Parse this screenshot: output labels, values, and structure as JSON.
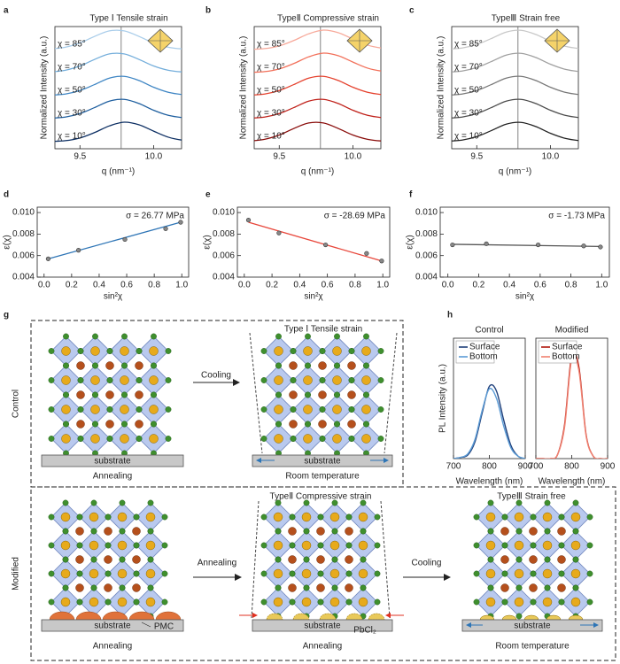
{
  "panel_labels": [
    "a",
    "b",
    "c",
    "d",
    "e",
    "f",
    "g",
    "h"
  ],
  "chart_data": [
    {
      "type": "waterfall",
      "title": "Type Ⅰ   Tensile strain",
      "x_label": "q (nm⁻¹)",
      "y_label": "Normalized Intensity (a.u.)",
      "x": [
        9.3,
        9.4,
        9.5,
        9.6,
        9.7,
        9.8,
        9.9,
        10,
        10.1,
        10.2,
        10.3
      ],
      "xlim": [
        9.33,
        10.19
      ],
      "xticks": [
        9.5,
        {
          "value": 10,
          "label": "10.0"
        }
      ],
      "ref_line": 9.78,
      "series": [
        {
          "name": "χ = 85°",
          "color": "#a9cdea",
          "values": [
            0.03,
            0.12,
            0.34,
            0.68,
            0.96,
            0.96,
            0.68,
            0.34,
            0.12,
            0.03,
            0.01
          ]
        },
        {
          "name": "χ = 70°",
          "color": "#74aedb",
          "values": [
            0.03,
            0.12,
            0.34,
            0.68,
            0.96,
            0.96,
            0.68,
            0.34,
            0.12,
            0.03,
            0.01
          ]
        },
        {
          "name": "χ = 50°",
          "color": "#3f86c4",
          "values": [
            0.02,
            0.08,
            0.26,
            0.57,
            0.9,
            0.99,
            0.78,
            0.43,
            0.17,
            0.05,
            0.01
          ]
        },
        {
          "name": "χ = 30°",
          "color": "#1f5f9f",
          "values": [
            0.02,
            0.08,
            0.26,
            0.57,
            0.9,
            0.99,
            0.78,
            0.43,
            0.17,
            0.05,
            0.01
          ]
        },
        {
          "name": "χ = 10°",
          "color": "#0d2f63",
          "values": [
            0.01,
            0.05,
            0.19,
            0.47,
            0.81,
            1.0,
            0.87,
            0.54,
            0.23,
            0.07,
            0.02
          ]
        }
      ]
    },
    {
      "type": "waterfall",
      "title": "TypeⅡ  Compressive strain",
      "x_label": "q (nm⁻¹)",
      "y_label": "Normalized Intensity (a.u.)",
      "x": [
        9.3,
        9.4,
        9.5,
        9.6,
        9.7,
        9.8,
        9.9,
        10,
        10.1,
        10.2,
        10.3
      ],
      "xlim": [
        9.33,
        10.19
      ],
      "xticks": [
        9.5,
        {
          "value": 10,
          "label": "10.0"
        }
      ],
      "ref_line": 9.78,
      "series": [
        {
          "name": "χ = 85°",
          "color": "#f7a99a",
          "values": [
            0.01,
            0.05,
            0.19,
            0.47,
            0.81,
            1.0,
            0.87,
            0.54,
            0.23,
            0.07,
            0.02
          ]
        },
        {
          "name": "χ = 70°",
          "color": "#f2705a",
          "values": [
            0.01,
            0.05,
            0.19,
            0.47,
            0.81,
            1.0,
            0.87,
            0.54,
            0.23,
            0.07,
            0.02
          ]
        },
        {
          "name": "χ = 50°",
          "color": "#e5412d",
          "values": [
            0.02,
            0.08,
            0.26,
            0.57,
            0.9,
            0.99,
            0.78,
            0.43,
            0.17,
            0.05,
            0.01
          ]
        },
        {
          "name": "χ = 30°",
          "color": "#c0211a",
          "values": [
            0.02,
            0.08,
            0.26,
            0.57,
            0.9,
            0.99,
            0.78,
            0.43,
            0.17,
            0.05,
            0.01
          ]
        },
        {
          "name": "χ = 10°",
          "color": "#8a0d0b",
          "values": [
            0.03,
            0.12,
            0.34,
            0.68,
            0.96,
            0.96,
            0.68,
            0.34,
            0.12,
            0.03,
            0.01
          ]
        }
      ]
    },
    {
      "type": "waterfall",
      "title": "TypeⅢ  Strain free",
      "x_label": "q (nm⁻¹)",
      "y_label": "Normalized Intensity (a.u.)",
      "x": [
        9.3,
        9.4,
        9.5,
        9.6,
        9.7,
        9.8,
        9.9,
        10,
        10.1,
        10.2,
        10.3
      ],
      "xlim": [
        9.33,
        10.19
      ],
      "xticks": [
        9.5,
        {
          "value": 10,
          "label": "10.0"
        }
      ],
      "ref_line": 9.78,
      "series": [
        {
          "name": "χ = 85°",
          "color": "#c8c8c8",
          "values": [
            0.02,
            0.08,
            0.26,
            0.57,
            0.9,
            0.99,
            0.78,
            0.43,
            0.17,
            0.05,
            0.01
          ]
        },
        {
          "name": "χ = 70°",
          "color": "#a0a0a0",
          "values": [
            0.02,
            0.08,
            0.26,
            0.57,
            0.9,
            0.99,
            0.78,
            0.43,
            0.17,
            0.05,
            0.01
          ]
        },
        {
          "name": "χ = 50°",
          "color": "#787878",
          "values": [
            0.02,
            0.08,
            0.26,
            0.57,
            0.9,
            0.99,
            0.78,
            0.43,
            0.17,
            0.05,
            0.01
          ]
        },
        {
          "name": "χ = 30°",
          "color": "#4c4c4c",
          "values": [
            0.02,
            0.08,
            0.26,
            0.57,
            0.9,
            0.99,
            0.78,
            0.43,
            0.17,
            0.05,
            0.01
          ]
        },
        {
          "name": "χ = 10°",
          "color": "#222222",
          "values": [
            0.02,
            0.08,
            0.26,
            0.57,
            0.9,
            0.99,
            0.78,
            0.43,
            0.17,
            0.05,
            0.01
          ]
        }
      ]
    },
    {
      "type": "scatter",
      "x_label": "sin²χ",
      "y_label": "ε(χ)",
      "annotation": "σ = 26.77 MPa",
      "color": "#2e75b6",
      "x": [
        0.03,
        0.25,
        0.587,
        0.883,
        0.992
      ],
      "values": [
        0.0057,
        0.0065,
        0.0075,
        0.0085,
        0.0091
      ],
      "fit": {
        "x": [
          0.03,
          0.992
        ],
        "values": [
          0.0057,
          0.0091
        ]
      },
      "xlim": [
        -0.05,
        1.05
      ],
      "ylim": [
        0.004,
        0.0105
      ],
      "xticks": [
        {
          "value": 0,
          "label": "0.0"
        },
        0.2,
        0.4,
        0.6,
        0.8,
        {
          "value": 1,
          "label": "1.0"
        }
      ],
      "yticks": [
        0.004,
        0.006,
        0.008,
        {
          "value": 0.01,
          "label": "0.010"
        }
      ]
    },
    {
      "type": "scatter",
      "x_label": "sin²χ",
      "y_label": "ε(χ)",
      "annotation": "σ = -28.69 MPa",
      "color": "#e8463a",
      "x": [
        0.03,
        0.25,
        0.587,
        0.883,
        0.992
      ],
      "values": [
        0.0093,
        0.0081,
        0.007,
        0.0062,
        0.0055
      ],
      "fit": {
        "x": [
          0.03,
          0.992
        ],
        "values": [
          0.0091,
          0.0055
        ]
      },
      "xlim": [
        -0.05,
        1.05
      ],
      "ylim": [
        0.004,
        0.0105
      ],
      "xticks": [
        {
          "value": 0,
          "label": "0.0"
        },
        0.2,
        0.4,
        0.6,
        0.8,
        {
          "value": 1,
          "label": "1.0"
        }
      ],
      "yticks": [
        0.004,
        0.006,
        0.008,
        {
          "value": 0.01,
          "label": "0.010"
        }
      ]
    },
    {
      "type": "scatter",
      "x_label": "sin²χ",
      "y_label": "ε(χ)",
      "annotation": "σ = -1.73 MPa",
      "color": "#555555",
      "x": [
        0.03,
        0.25,
        0.587,
        0.883,
        0.992
      ],
      "values": [
        0.007,
        0.0071,
        0.007,
        0.0069,
        0.0068
      ],
      "fit": {
        "x": [
          0.03,
          0.992
        ],
        "values": [
          0.00705,
          0.00685
        ]
      },
      "xlim": [
        -0.05,
        1.05
      ],
      "ylim": [
        0.004,
        0.0105
      ],
      "xticks": [
        {
          "value": 0,
          "label": "0.0"
        },
        0.2,
        0.4,
        0.6,
        0.8,
        {
          "value": 1,
          "label": "1.0"
        }
      ],
      "yticks": [
        0.004,
        0.006,
        0.008,
        {
          "value": 0.01,
          "label": "0.010"
        }
      ]
    },
    {
      "type": "line",
      "title": "Control",
      "x_label": "Wavelength (nm)",
      "y_label": "PL Intensity (a.u.)",
      "x": [
        700,
        720,
        740,
        760,
        780,
        800,
        820,
        840,
        860,
        880,
        900
      ],
      "xlim": [
        700,
        900
      ],
      "xticks": [
        700,
        800,
        900
      ],
      "ylim": [
        0,
        1
      ],
      "legend": "upper left",
      "series": [
        {
          "name": "Surface",
          "color": "#1f3f7a",
          "values": [
            0,
            0.01,
            0.03,
            0.14,
            0.38,
            0.6,
            0.56,
            0.32,
            0.11,
            0.02,
            0
          ]
        },
        {
          "name": "Bottom",
          "color": "#5b9bd5",
          "values": [
            0,
            0.01,
            0.04,
            0.16,
            0.4,
            0.58,
            0.5,
            0.27,
            0.09,
            0.02,
            0
          ]
        }
      ]
    },
    {
      "type": "line",
      "title": "Modified",
      "x_label": "Wavelength (nm)",
      "x": [
        700,
        720,
        740,
        760,
        780,
        800,
        820,
        840,
        860,
        880,
        900
      ],
      "xlim": [
        700,
        900
      ],
      "xticks": [
        700,
        800,
        900
      ],
      "ylim": [
        0,
        1
      ],
      "legend": "upper left",
      "series": [
        {
          "name": "Surface",
          "color": "#b0170c",
          "values": [
            0,
            0,
            0,
            0.03,
            0.28,
            0.86,
            0.76,
            0.2,
            0.02,
            0,
            0
          ]
        },
        {
          "name": "Bottom",
          "color": "#f08070",
          "values": [
            0,
            0,
            0,
            0.03,
            0.26,
            0.83,
            0.73,
            0.19,
            0.02,
            0,
            0
          ]
        }
      ]
    }
  ],
  "diagram": {
    "row_labels": [
      "Control",
      "Modified"
    ],
    "arrows": [
      "Cooling",
      "Annealing",
      "Cooling"
    ],
    "substrate": "substrate",
    "steps": [
      "Annealing",
      "Room temperature",
      "Annealing",
      "Annealing",
      "Room temperature"
    ],
    "titles": [
      "Type Ⅰ   Tensile strain",
      "TypeⅡ  Compressive strain",
      "TypeⅢ  Strain free"
    ],
    "pmc": "PMC",
    "pbcl2": "PbCl₂"
  }
}
